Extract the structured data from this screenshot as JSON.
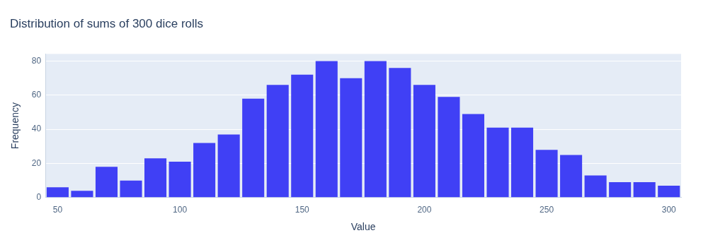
{
  "chart_data": {
    "type": "histogram",
    "title": "Distribution of sums of 300 dice rolls",
    "x_label": "Value",
    "y_label": "Frequency",
    "bins": [
      45,
      55,
      65,
      75,
      85,
      95,
      105,
      115,
      125,
      135,
      145,
      155,
      165,
      175,
      185,
      195,
      205,
      215,
      225,
      235,
      245,
      255,
      265,
      275,
      285,
      295,
      305
    ],
    "values": [
      6,
      4,
      18,
      10,
      23,
      21,
      32,
      37,
      58,
      66,
      72,
      80,
      70,
      80,
      76,
      66,
      59,
      49,
      41,
      41,
      28,
      25,
      13,
      9,
      9,
      7
    ],
    "color": "#4040f5",
    "xlim": [
      45,
      305
    ],
    "xticks": [
      50,
      100,
      150,
      200,
      250,
      300
    ],
    "ylim": [
      0,
      84.2
    ],
    "yticks": [
      0,
      20,
      40,
      60,
      80
    ],
    "grid": true
  }
}
